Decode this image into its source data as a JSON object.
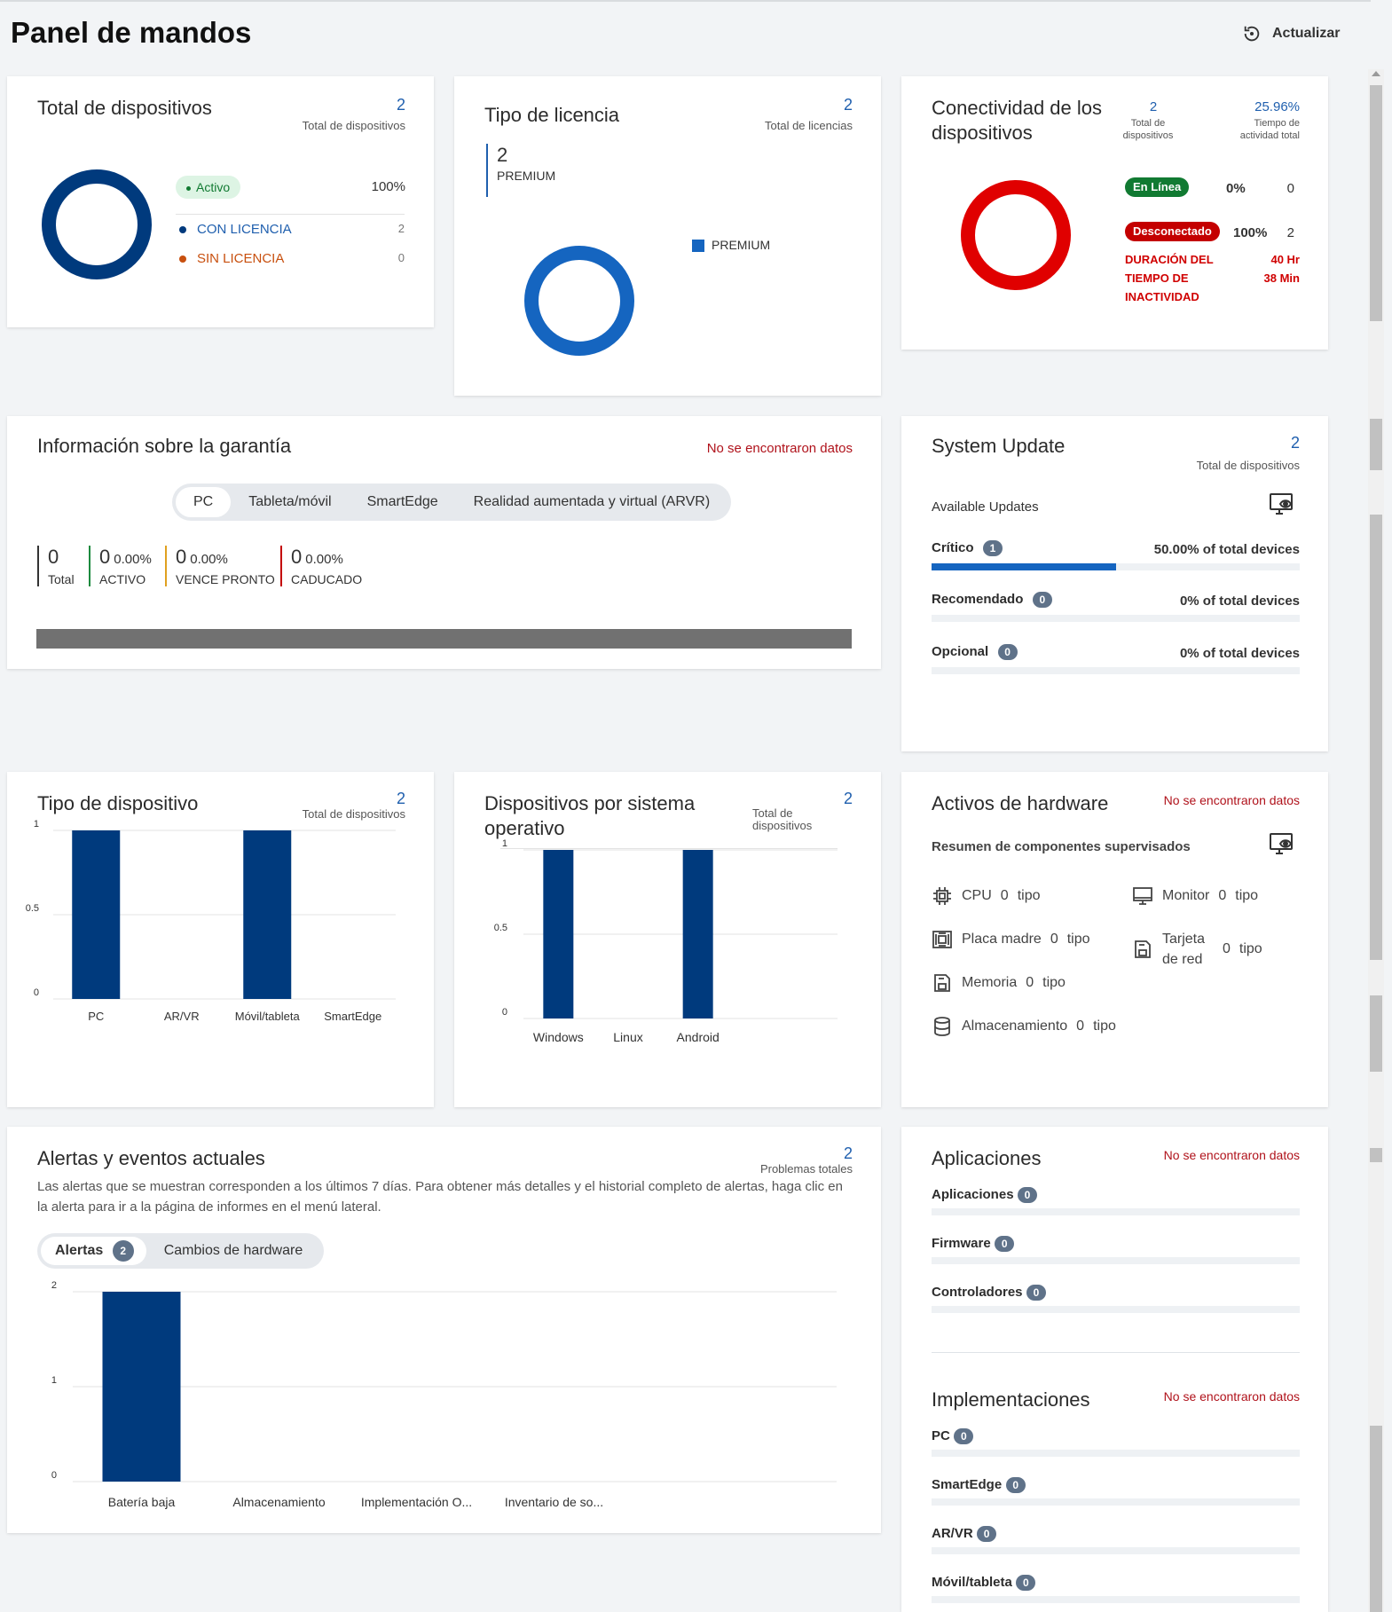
{
  "page": {
    "title": "Panel de mandos",
    "refresh_label": "Actualizar"
  },
  "colors": {
    "navy": "#003a7d",
    "blue": "#1565c0",
    "red": "#e00000",
    "green": "#117a32",
    "orange": "#c8500f"
  },
  "total_devices": {
    "title": "Total de dispositivos",
    "count": "2",
    "count_label": "Total de dispositivos",
    "status_badge": "Activo",
    "status_pct": "100%",
    "rows": [
      {
        "label": "CON LICENCIA",
        "value": "2"
      },
      {
        "label": "SIN LICENCIA",
        "value": "0"
      }
    ]
  },
  "license_type": {
    "title": "Tipo de licencia",
    "count": "2",
    "count_label": "Total de licencias",
    "stat_value": "2",
    "stat_label": "PREMIUM",
    "legend_label": "PREMIUM"
  },
  "connectivity": {
    "title": "Conectividad de los dispositivos",
    "devices_count": "2",
    "devices_label": "Total de dispositivos",
    "activity_pct": "25.96%",
    "activity_label": "Tiempo de actividad total",
    "online_label": "En Línea",
    "online_pct": "0%",
    "online_count": "0",
    "offline_label": "Desconectado",
    "offline_pct": "100%",
    "offline_count": "2",
    "downtime_label": "DURACIÓN DEL TIEMPO DE INACTIVIDAD",
    "downtime_value": "40 Hr 38 Min"
  },
  "warranty": {
    "title": "Información sobre la garantía",
    "no_data": "No se encontraron datos",
    "tabs": [
      "PC",
      "Tableta/móvil",
      "SmartEdge",
      "Realidad aumentada y virtual (ARVR)"
    ],
    "stats": [
      {
        "n": "0",
        "pct": "",
        "label": "Total"
      },
      {
        "n": "0",
        "pct": "0.00%",
        "label": "ACTIVO"
      },
      {
        "n": "0",
        "pct": "0.00%",
        "label": "VENCE PRONTO"
      },
      {
        "n": "0",
        "pct": "0.00%",
        "label": "CADUCADO"
      }
    ]
  },
  "system_update": {
    "title": "System Update",
    "count": "2",
    "count_label": "Total de dispositivos",
    "available_label": "Available Updates",
    "rows": [
      {
        "label": "Crítico",
        "badge": "1",
        "text": "50.00% of total devices",
        "fraction": 0.5
      },
      {
        "label": "Recomendado",
        "badge": "0",
        "text": "0% of total devices",
        "fraction": 0
      },
      {
        "label": "Opcional",
        "badge": "0",
        "text": "0% of total devices",
        "fraction": 0
      }
    ]
  },
  "device_type": {
    "title": "Tipo de dispositivo",
    "count": "2",
    "count_label": "Total de dispositivos",
    "chart_data": {
      "type": "bar",
      "categories": [
        "PC",
        "AR/VR",
        "Móvil/tableta",
        "SmartEdge"
      ],
      "values": [
        1,
        0,
        1,
        0
      ],
      "ylim": [
        0,
        1
      ],
      "yticks": [
        "1",
        "0.5",
        "0"
      ]
    }
  },
  "os_devices": {
    "title": "Dispositivos por sistema operativo",
    "count": "2",
    "count_label": "Total de dispositivos",
    "chart_data": {
      "type": "bar",
      "categories": [
        "Windows",
        "Linux",
        "Android"
      ],
      "values": [
        1,
        0,
        1
      ],
      "ylim": [
        0,
        1
      ],
      "yticks": [
        "1",
        "0.5",
        "0"
      ]
    }
  },
  "hardware": {
    "title": "Activos de hardware",
    "no_data": "No se encontraron datos",
    "subtitle": "Resumen de componentes supervisados",
    "items": [
      {
        "icon": "cpu-icon",
        "label": "CPU",
        "count": "0",
        "unit": "tipo"
      },
      {
        "icon": "monitor-icon",
        "label": "Monitor",
        "count": "0",
        "unit": "tipo"
      },
      {
        "icon": "motherboard-icon",
        "label": "Placa madre",
        "count": "0",
        "unit": "tipo"
      },
      {
        "icon": "network-card-icon",
        "label": "Tarjeta de red",
        "count": "0",
        "unit": "tipo"
      },
      {
        "icon": "memory-icon",
        "label": "Memoria",
        "count": "0",
        "unit": "tipo"
      },
      {
        "icon": "storage-icon",
        "label": "Almacenamiento",
        "count": "0",
        "unit": "tipo"
      }
    ]
  },
  "alerts": {
    "title": "Alertas y eventos actuales",
    "count": "2",
    "count_label": "Problemas totales",
    "description": "Las alertas que se muestran corresponden a los últimos 7 días. Para obtener más detalles y el historial completo de alertas, haga clic en la alerta para ir a la página de informes en el menú lateral.",
    "tab_alerts": "Alertas",
    "tab_alerts_badge": "2",
    "tab_hardware": "Cambios de hardware",
    "chart_data": {
      "type": "bar",
      "categories": [
        "Batería baja",
        "Almacenamiento",
        "Implementación O...",
        "Inventario de so..."
      ],
      "values": [
        2,
        0,
        0,
        0
      ],
      "ylim": [
        0,
        2
      ],
      "yticks": [
        "2",
        "1",
        "0"
      ]
    }
  },
  "applications": {
    "title": "Aplicaciones",
    "no_data": "No se encontraron datos",
    "rows": [
      {
        "label": "Aplicaciones",
        "badge": "0"
      },
      {
        "label": "Firmware",
        "badge": "0"
      },
      {
        "label": "Controladores",
        "badge": "0"
      }
    ]
  },
  "deployments": {
    "title": "Implementaciones",
    "no_data": "No se encontraron datos",
    "rows": [
      {
        "label": "PC",
        "badge": "0"
      },
      {
        "label": "SmartEdge",
        "badge": "0"
      },
      {
        "label": "AR/VR",
        "badge": "0"
      },
      {
        "label": "Móvil/tableta",
        "badge": "0"
      }
    ]
  }
}
